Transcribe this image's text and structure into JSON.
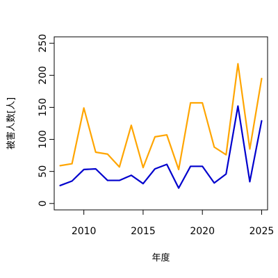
{
  "chart_data": {
    "type": "line",
    "title": "",
    "xlabel": "年度",
    "ylabel": "被害人数[人]",
    "xlim": [
      2007.5,
      2025.5
    ],
    "ylim": [
      -10,
      260
    ],
    "x_ticks": [
      2010,
      2015,
      2020,
      2025
    ],
    "y_ticks": [
      0,
      50,
      100,
      150,
      200,
      250
    ],
    "grid": false,
    "x": [
      2008,
      2009,
      2010,
      2011,
      2012,
      2013,
      2014,
      2015,
      2016,
      2017,
      2018,
      2019,
      2020,
      2021,
      2022,
      2023,
      2024,
      2025
    ],
    "series": [
      {
        "color": "#FFA500",
        "values": [
          59,
          62,
          149,
          80,
          77,
          57,
          122,
          56,
          104,
          107,
          53,
          157,
          157,
          88,
          76,
          218,
          85,
          195
        ]
      },
      {
        "color": "#0000CD",
        "values": [
          28,
          35,
          53,
          54,
          36,
          36,
          44,
          31,
          54,
          61,
          24,
          58,
          58,
          32,
          46,
          152,
          34,
          129
        ]
      }
    ]
  }
}
